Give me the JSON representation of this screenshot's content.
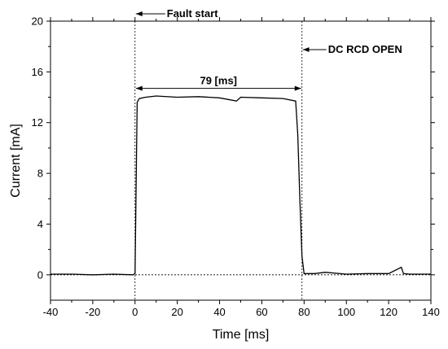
{
  "chart_data": {
    "type": "line",
    "title": "",
    "xlabel": "Time [ms]",
    "ylabel": "Current [mA]",
    "xlim": [
      -40,
      140
    ],
    "ylim": [
      -2,
      20
    ],
    "x_ticks": [
      -40,
      -20,
      0,
      20,
      40,
      60,
      80,
      100,
      120,
      140
    ],
    "y_ticks": [
      0,
      4,
      8,
      12,
      16,
      20
    ],
    "grid": false,
    "series": [
      {
        "x": [
          -40,
          -30,
          -20,
          -10,
          -1,
          0,
          0.5,
          1,
          2,
          5,
          10,
          20,
          30,
          40,
          48,
          50,
          60,
          70,
          76,
          77,
          78,
          79,
          80,
          85,
          90,
          100,
          110,
          120,
          126,
          127,
          130,
          140
        ],
        "y": [
          0.05,
          0.05,
          0.0,
          0.05,
          0.0,
          0.1,
          7.0,
          13.6,
          13.9,
          14.0,
          14.1,
          14.0,
          14.05,
          13.95,
          13.7,
          14.0,
          13.95,
          13.9,
          13.7,
          11.0,
          6.0,
          1.5,
          0.1,
          0.1,
          0.2,
          0.05,
          0.1,
          0.1,
          0.6,
          0.1,
          0.05,
          0.05
        ],
        "color": "#000000"
      }
    ],
    "annotations": {
      "fault_start": {
        "text": "Fault start",
        "x": 0
      },
      "rcd_open": {
        "text": "DC RCD OPEN",
        "x": 79
      },
      "duration": {
        "text": "79 [ms]",
        "x_start": 0,
        "x_end": 79,
        "y": 14.7
      },
      "baseline_y": 0
    }
  }
}
